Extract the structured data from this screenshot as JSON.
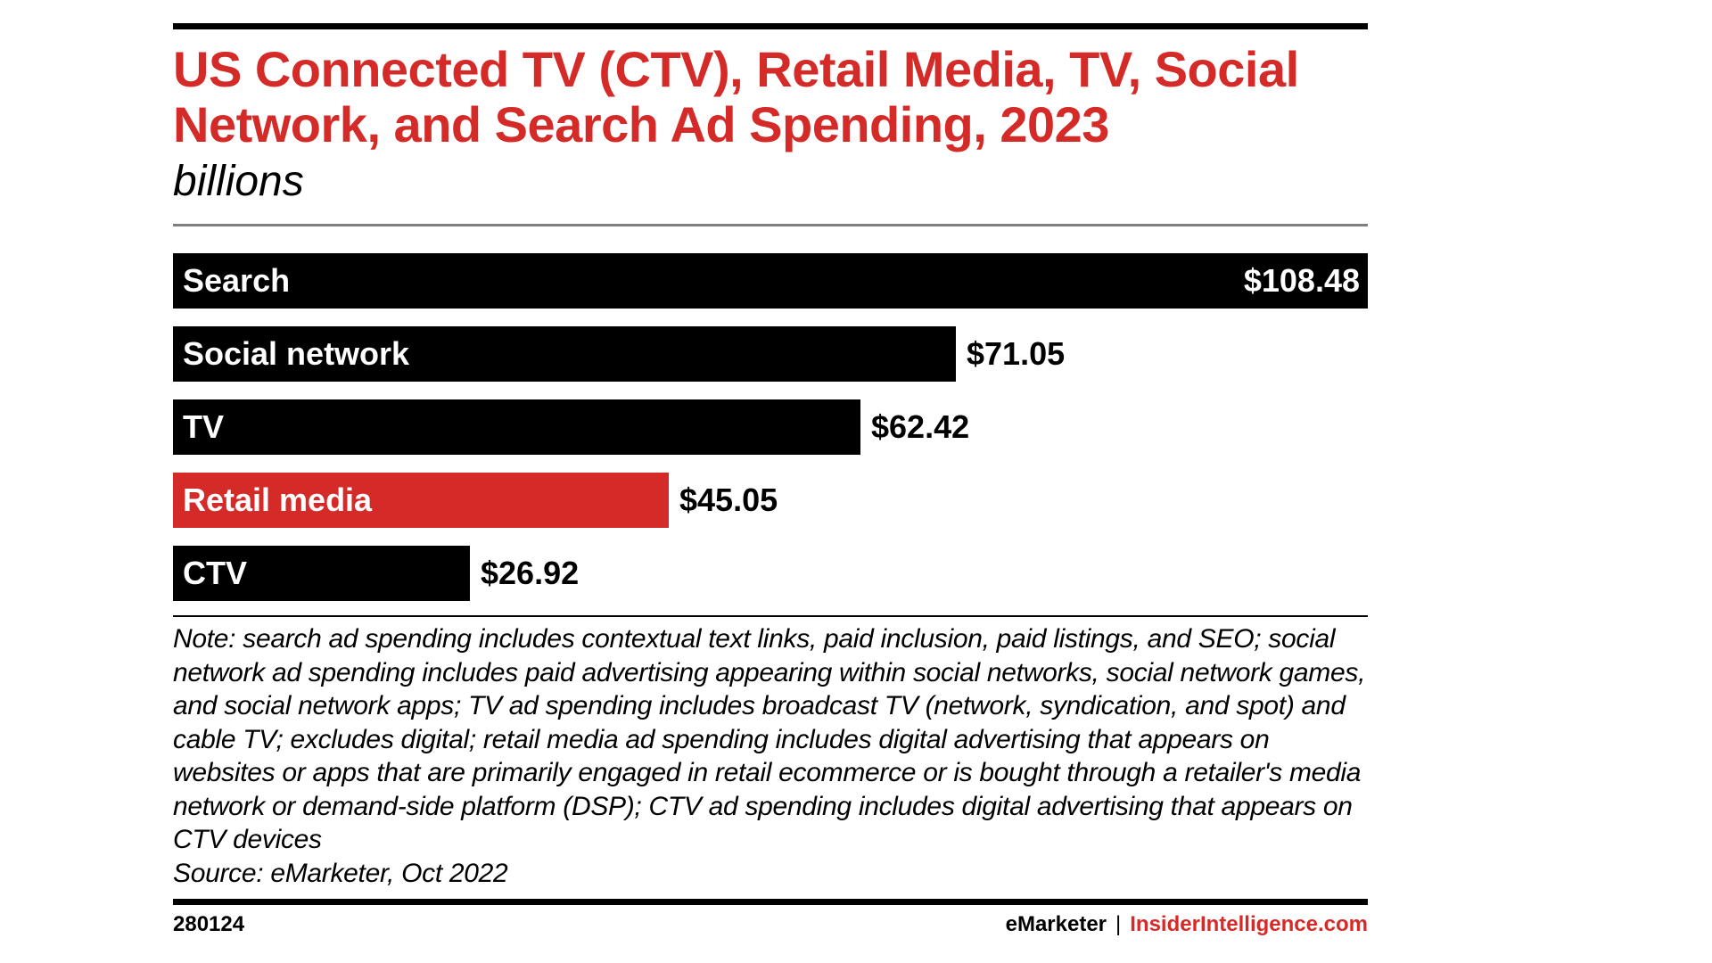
{
  "title": "US Connected TV (CTV), Retail Media, TV, Social Network, and Search Ad Spending, 2023",
  "subtitle": "billions",
  "chart_data": {
    "type": "bar",
    "orientation": "horizontal",
    "title": "US Connected TV (CTV), Retail Media, TV, Social Network, and Search Ad Spending, 2023",
    "unit": "billions",
    "categories": [
      "Search",
      "Social network",
      "TV",
      "Retail media",
      "CTV"
    ],
    "values": [
      108.48,
      71.05,
      62.42,
      45.05,
      26.92
    ],
    "value_labels": [
      "$108.48",
      "$71.05",
      "$62.42",
      "$45.05",
      "$26.92"
    ],
    "bar_colors": [
      "#000000",
      "#000000",
      "#000000",
      "#d52b28",
      "#000000"
    ],
    "xlim": [
      0,
      108.48
    ],
    "grid": false,
    "legend": "none"
  },
  "note": "Note: search ad spending includes contextual text links, paid inclusion, paid listings, and SEO; social network ad spending includes paid advertising appearing within social networks, social network games, and social network apps; TV ad spending includes broadcast TV (network, syndication, and spot) and cable TV; excludes digital; retail media ad spending includes digital advertising that appears on websites or apps that are primarily engaged in retail ecommerce or is bought through a retailer's media network or demand-side platform (DSP); CTV ad spending includes digital advertising that appears on CTV devices",
  "source": "Source: eMarketer, Oct 2022",
  "footer": {
    "chart_id": "280124",
    "brand": "eMarketer",
    "separator": "|",
    "site": "InsiderIntelligence.com"
  },
  "colors": {
    "accent": "#d52b28",
    "bar": "#000000"
  }
}
